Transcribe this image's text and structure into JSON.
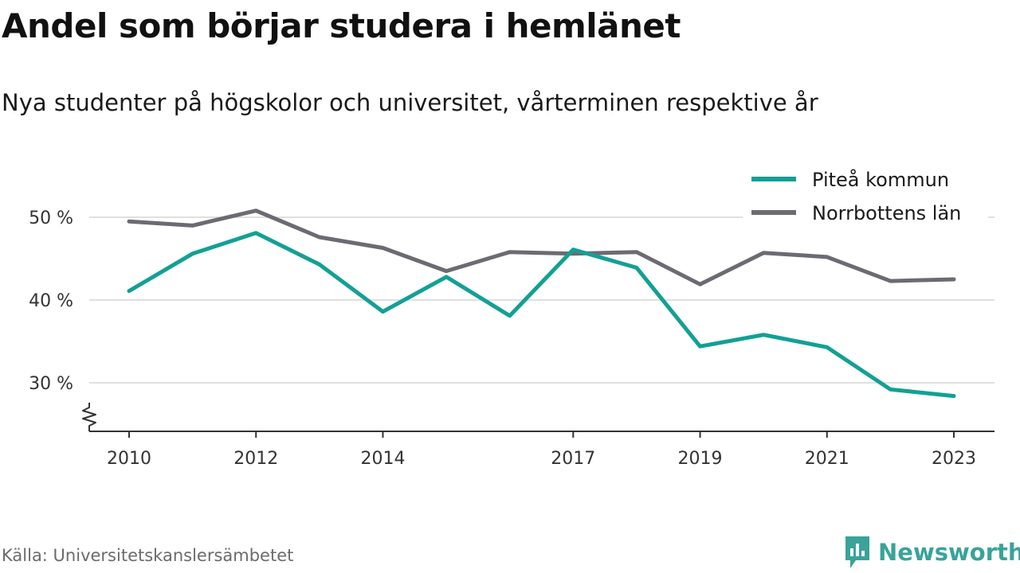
{
  "header": {
    "title": "Andel som börjar studera i hemlänet",
    "subtitle": "Nya studenter på högskolor och universitet, vårterminen respektive år"
  },
  "footer": {
    "source": "Källa: Universitetskanslersämbetet",
    "brand": "Newsworthy",
    "brand_icon": "newsworthy-logo-icon",
    "brand_color": "#3aa39a"
  },
  "chart_data": {
    "type": "line",
    "x": [
      2010,
      2011,
      2012,
      2013,
      2014,
      2015,
      2016,
      2017,
      2018,
      2019,
      2020,
      2021,
      2022,
      2023
    ],
    "x_tick_labels": [
      "2010",
      "2012",
      "2014",
      "2017",
      "2019",
      "2021",
      "2023"
    ],
    "y_ticks": [
      {
        "value": 30,
        "label": "30 %"
      },
      {
        "value": 40,
        "label": "40 %"
      },
      {
        "value": 50,
        "label": "50 %"
      }
    ],
    "ylim": [
      24,
      54
    ],
    "y_axis_break": true,
    "grid": true,
    "legend_position": "top-right",
    "series": [
      {
        "name": "Piteå kommun",
        "color": "#13a095",
        "values": [
          41.1,
          45.6,
          48.1,
          44.3,
          38.6,
          42.8,
          38.1,
          46.1,
          43.9,
          34.4,
          35.8,
          34.3,
          29.2,
          28.4
        ]
      },
      {
        "name": "Norrbottens län",
        "color": "#6c6a72",
        "values": [
          49.5,
          49.0,
          50.8,
          47.6,
          46.3,
          43.5,
          45.8,
          45.6,
          45.8,
          41.9,
          45.7,
          45.2,
          42.3,
          42.5
        ]
      }
    ]
  }
}
